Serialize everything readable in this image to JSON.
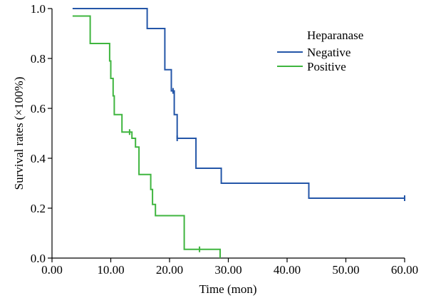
{
  "chart_data": {
    "type": "line",
    "subtype": "kaplan-meier step",
    "xlabel": "Time (mon)",
    "ylabel": "Survival rates (×100%)",
    "xlim": [
      0,
      60
    ],
    "ylim": [
      0,
      1
    ],
    "x_ticks": [
      "0.00",
      "10.00",
      "20.00",
      "30.00",
      "40.00",
      "50.00",
      "60.00"
    ],
    "y_ticks": [
      "0.0",
      "0.2",
      "0.4",
      "0.6",
      "0.8",
      "1.0"
    ],
    "grid": false,
    "legend": {
      "title": "Heparanase",
      "placement": "top-right",
      "entries": [
        "Negative",
        "Positive"
      ]
    },
    "series": [
      {
        "name": "Negative",
        "color": "#2456a8",
        "steps": [
          [
            3.5,
            1.0
          ],
          [
            16.2,
            1.0
          ],
          [
            16.2,
            0.92
          ],
          [
            19.2,
            0.92
          ],
          [
            19.2,
            0.755
          ],
          [
            20.3,
            0.755
          ],
          [
            20.3,
            0.67
          ],
          [
            20.8,
            0.67
          ],
          [
            20.8,
            0.575
          ],
          [
            21.3,
            0.575
          ],
          [
            21.3,
            0.48
          ],
          [
            24.5,
            0.48
          ],
          [
            24.5,
            0.36
          ],
          [
            28.8,
            0.36
          ],
          [
            28.8,
            0.3
          ],
          [
            43.7,
            0.3
          ],
          [
            43.7,
            0.24
          ],
          [
            60.0,
            0.24
          ]
        ],
        "censored": [
          [
            20.6,
            0.67
          ],
          [
            21.3,
            0.48
          ],
          [
            60.0,
            0.24
          ]
        ]
      },
      {
        "name": "Positive",
        "color": "#3fb53f",
        "steps": [
          [
            3.5,
            0.97
          ],
          [
            6.5,
            0.97
          ],
          [
            6.5,
            0.86
          ],
          [
            9.8,
            0.86
          ],
          [
            9.8,
            0.79
          ],
          [
            10.0,
            0.79
          ],
          [
            10.0,
            0.72
          ],
          [
            10.4,
            0.72
          ],
          [
            10.4,
            0.65
          ],
          [
            10.6,
            0.65
          ],
          [
            10.6,
            0.575
          ],
          [
            11.9,
            0.575
          ],
          [
            11.9,
            0.505
          ],
          [
            13.6,
            0.505
          ],
          [
            13.6,
            0.48
          ],
          [
            14.2,
            0.48
          ],
          [
            14.2,
            0.445
          ],
          [
            14.8,
            0.445
          ],
          [
            14.8,
            0.335
          ],
          [
            16.8,
            0.335
          ],
          [
            16.8,
            0.275
          ],
          [
            17.1,
            0.275
          ],
          [
            17.1,
            0.215
          ],
          [
            17.6,
            0.215
          ],
          [
            17.6,
            0.17
          ],
          [
            22.5,
            0.17
          ],
          [
            22.5,
            0.035
          ],
          [
            28.6,
            0.035
          ],
          [
            28.6,
            0.0
          ]
        ],
        "censored": [
          [
            13.2,
            0.505
          ],
          [
            25.1,
            0.035
          ]
        ]
      }
    ]
  }
}
